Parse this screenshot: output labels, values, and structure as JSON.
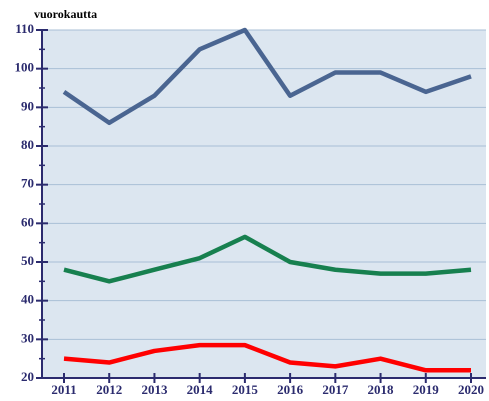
{
  "chart_data": {
    "type": "line",
    "y_label": "vuorokautta",
    "categories": [
      "2011",
      "2012",
      "2013",
      "2014",
      "2015",
      "2016",
      "2017",
      "2018",
      "2019",
      "2020"
    ],
    "series": [
      {
        "color": "#4a6591",
        "values": [
          94,
          86,
          93,
          105,
          110,
          93,
          99,
          99,
          94,
          98
        ]
      },
      {
        "color": "#17804f",
        "values": [
          48,
          45,
          48,
          51,
          56.5,
          50,
          48,
          47,
          47,
          48
        ]
      },
      {
        "color": "#ff0000",
        "values": [
          25,
          24,
          27,
          28.5,
          28.5,
          24,
          23,
          25,
          22,
          22
        ]
      }
    ],
    "ylim": [
      20,
      110
    ],
    "yticks": [
      20,
      30,
      40,
      50,
      60,
      70,
      80,
      90,
      100,
      110
    ],
    "grid": true
  }
}
